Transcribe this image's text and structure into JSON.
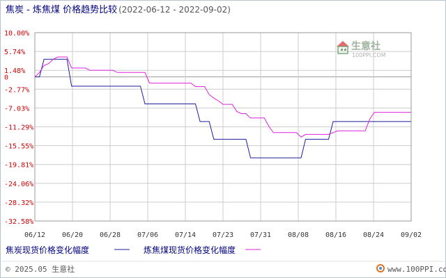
{
  "header": {
    "title": "焦炭 - 炼焦煤 价格趋势比较",
    "date_range": "(2022-06-12 - 2022-09-02)"
  },
  "watermark": {
    "brand": "生意社",
    "url": "100PPI.COM",
    "icon": "house-logo-icon"
  },
  "footer": {
    "copyright": "© 2025.05 生意社",
    "site": "www.100PPI.com",
    "icon": "lifebuoy-icon"
  },
  "colors": {
    "series_1": "#1c1c9c",
    "series_2": "#dd22dd",
    "tick_y": "#cc0000",
    "grid": "#cccccc",
    "zero_line": "#999999"
  },
  "chart_data": {
    "type": "line",
    "title": "焦炭 - 炼焦煤 价格趋势比较",
    "subtitle": "(2022-06-12 - 2022-09-02)",
    "xlabel": "",
    "ylabel": "",
    "x_ticks": [
      "06/12",
      "06/20",
      "06/28",
      "07/06",
      "07/14",
      "07/23",
      "07/31",
      "08/08",
      "08/16",
      "08/24",
      "09/02"
    ],
    "y_ticks": [
      "10.00%",
      "5.74%",
      "1.48%",
      "0",
      "-2.77%",
      "-7.03%",
      "-11.29%",
      "-15.55%",
      "-19.81%",
      "-24.06%",
      "-28.32%",
      "-32.58%"
    ],
    "y_tick_values": [
      10.0,
      5.74,
      1.48,
      0,
      -2.77,
      -7.03,
      -11.29,
      -15.55,
      -19.81,
      -24.06,
      -28.32,
      -32.58
    ],
    "ylim": [
      -32.58,
      10.0
    ],
    "xlim": [
      "2022-06-12",
      "2022-09-02"
    ],
    "grid": true,
    "legend_position": "bottom",
    "series": [
      {
        "name": "焦炭现货价格变化幅度",
        "color": "#1c1c9c",
        "x": [
          "2022-06-12",
          "2022-06-13",
          "2022-06-14",
          "2022-06-15",
          "2022-06-16",
          "2022-06-17",
          "2022-06-18",
          "2022-06-19",
          "2022-06-20",
          "2022-06-21",
          "2022-06-22",
          "2022-06-23",
          "2022-06-24",
          "2022-06-25",
          "2022-06-26",
          "2022-06-27",
          "2022-06-28",
          "2022-06-29",
          "2022-06-30",
          "2022-07-01",
          "2022-07-02",
          "2022-07-03",
          "2022-07-04",
          "2022-07-05",
          "2022-07-06",
          "2022-07-07",
          "2022-07-08",
          "2022-07-09",
          "2022-07-10",
          "2022-07-11",
          "2022-07-12",
          "2022-07-13",
          "2022-07-14",
          "2022-07-15",
          "2022-07-16",
          "2022-07-17",
          "2022-07-18",
          "2022-07-19",
          "2022-07-20",
          "2022-07-21",
          "2022-07-22",
          "2022-07-23",
          "2022-07-24",
          "2022-07-25",
          "2022-07-26",
          "2022-07-27",
          "2022-07-28",
          "2022-07-29",
          "2022-07-30",
          "2022-07-31",
          "2022-08-01",
          "2022-08-02",
          "2022-08-03",
          "2022-08-04",
          "2022-08-05",
          "2022-08-06",
          "2022-08-07",
          "2022-08-08",
          "2022-08-09",
          "2022-08-10",
          "2022-08-11",
          "2022-08-12",
          "2022-08-13",
          "2022-08-14",
          "2022-08-15",
          "2022-08-16",
          "2022-08-17",
          "2022-08-18",
          "2022-08-19",
          "2022-08-20",
          "2022-08-21",
          "2022-08-22",
          "2022-08-23",
          "2022-08-24",
          "2022-08-25",
          "2022-08-26",
          "2022-08-27",
          "2022-08-28",
          "2022-08-29",
          "2022-08-30",
          "2022-08-31",
          "2022-09-01",
          "2022-09-02"
        ],
        "y": [
          0,
          0,
          4.0,
          4.0,
          4.0,
          4.0,
          4.0,
          4.0,
          -2.1,
          -2.1,
          -2.1,
          -2.1,
          -2.1,
          -2.1,
          -2.1,
          -2.1,
          -2.1,
          -2.1,
          -2.1,
          -2.1,
          -2.1,
          -2.1,
          -2.1,
          -2.1,
          -6.1,
          -6.1,
          -6.1,
          -6.1,
          -6.1,
          -6.1,
          -6.1,
          -6.1,
          -6.1,
          -6.1,
          -6.1,
          -6.1,
          -10.1,
          -10.1,
          -10.1,
          -14.1,
          -14.1,
          -14.1,
          -14.1,
          -14.1,
          -14.1,
          -14.1,
          -14.1,
          -18.3,
          -18.3,
          -18.3,
          -18.3,
          -18.3,
          -18.3,
          -18.3,
          -18.3,
          -18.3,
          -18.3,
          -18.3,
          -18.3,
          -14.1,
          -14.1,
          -14.1,
          -14.1,
          -14.1,
          -14.1,
          -10.1,
          -10.1,
          -10.1,
          -10.1,
          -10.1,
          -10.1,
          -10.1,
          -10.1,
          -10.1,
          -10.1,
          -10.1,
          -10.1,
          -10.1,
          -10.1,
          -10.1,
          -10.1,
          -10.1,
          -10.1
        ]
      },
      {
        "name": "炼焦煤现货价格变化幅度",
        "color": "#dd22dd",
        "x": [
          "2022-06-12",
          "2022-06-13",
          "2022-06-14",
          "2022-06-15",
          "2022-06-16",
          "2022-06-17",
          "2022-06-18",
          "2022-06-19",
          "2022-06-20",
          "2022-06-21",
          "2022-06-22",
          "2022-06-23",
          "2022-06-24",
          "2022-06-25",
          "2022-06-26",
          "2022-06-27",
          "2022-06-28",
          "2022-06-29",
          "2022-06-30",
          "2022-07-01",
          "2022-07-02",
          "2022-07-03",
          "2022-07-04",
          "2022-07-05",
          "2022-07-06",
          "2022-07-07",
          "2022-07-08",
          "2022-07-09",
          "2022-07-10",
          "2022-07-11",
          "2022-07-12",
          "2022-07-13",
          "2022-07-14",
          "2022-07-15",
          "2022-07-16",
          "2022-07-17",
          "2022-07-18",
          "2022-07-19",
          "2022-07-20",
          "2022-07-21",
          "2022-07-22",
          "2022-07-23",
          "2022-07-24",
          "2022-07-25",
          "2022-07-26",
          "2022-07-27",
          "2022-07-28",
          "2022-07-29",
          "2022-07-30",
          "2022-07-31",
          "2022-08-01",
          "2022-08-02",
          "2022-08-03",
          "2022-08-04",
          "2022-08-05",
          "2022-08-06",
          "2022-08-07",
          "2022-08-08",
          "2022-08-09",
          "2022-08-10",
          "2022-08-11",
          "2022-08-12",
          "2022-08-13",
          "2022-08-14",
          "2022-08-15",
          "2022-08-16",
          "2022-08-17",
          "2022-08-18",
          "2022-08-19",
          "2022-08-20",
          "2022-08-21",
          "2022-08-22",
          "2022-08-23",
          "2022-08-24",
          "2022-08-25",
          "2022-08-26",
          "2022-08-27",
          "2022-08-28",
          "2022-08-29",
          "2022-08-30",
          "2022-08-31",
          "2022-09-01",
          "2022-09-02"
        ],
        "y": [
          0,
          1.0,
          2.6,
          3.0,
          4.0,
          4.5,
          4.5,
          4.5,
          2.0,
          2.0,
          2.0,
          2.0,
          1.5,
          1.5,
          1.5,
          1.5,
          1.5,
          1.5,
          1.0,
          1.0,
          1.0,
          1.0,
          1.0,
          1.0,
          1.0,
          -1.4,
          -1.4,
          -1.4,
          -1.4,
          -1.4,
          -1.4,
          -1.4,
          -1.4,
          -1.4,
          -1.4,
          -2.2,
          -2.2,
          -2.2,
          -4.0,
          -4.8,
          -5.4,
          -6.2,
          -6.2,
          -6.2,
          -7.8,
          -8.3,
          -8.3,
          -9.3,
          -9.3,
          -9.3,
          -9.3,
          -11.2,
          -12.6,
          -12.6,
          -12.6,
          -12.6,
          -12.6,
          -12.6,
          -13.6,
          -13.0,
          -13.0,
          -13.0,
          -13.0,
          -13.0,
          -13.0,
          -12.6,
          -12.2,
          -12.2,
          -12.2,
          -12.2,
          -12.2,
          -12.2,
          -12.2,
          -9.5,
          -8.0,
          -8.0,
          -8.0,
          -8.0,
          -8.0,
          -8.0,
          -8.0,
          -8.0,
          -8.0
        ]
      }
    ]
  }
}
